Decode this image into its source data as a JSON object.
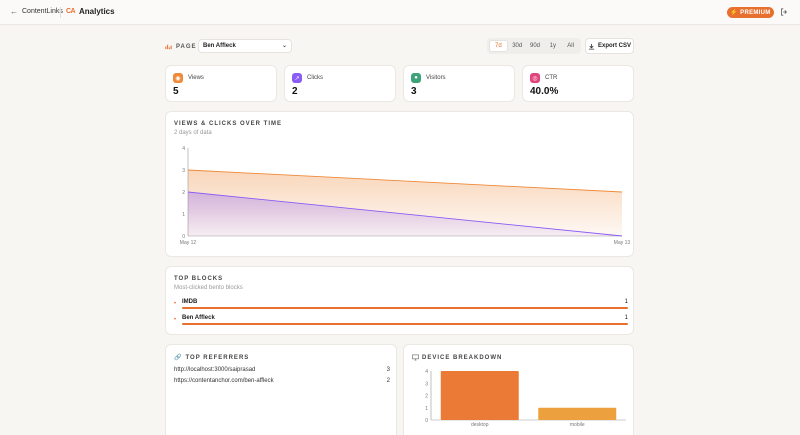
{
  "header": {
    "back_label": "ContentLinks",
    "logo_text": "CA",
    "title": "Analytics",
    "premium_label": "PREMIUM"
  },
  "toolbar": {
    "page_label": "PAGE",
    "selected_page": "Ben Affleck",
    "ranges": [
      "7d",
      "30d",
      "90d",
      "1y",
      "All"
    ],
    "active_range": "7d",
    "export_label": "Export CSV"
  },
  "stats": [
    {
      "label": "Views",
      "value": "5",
      "color": "#ee8a3a"
    },
    {
      "label": "Clicks",
      "value": "2",
      "color": "#8b5cf6"
    },
    {
      "label": "Visitors",
      "value": "3",
      "color": "#3fa37a"
    },
    {
      "label": "CTR",
      "value": "40.0%",
      "color": "#e0457b"
    }
  ],
  "timeline": {
    "title": "VIEWS & CLICKS OVER TIME",
    "subtitle": "2 days of data"
  },
  "top_blocks": {
    "title": "TOP BLOCKS",
    "subtitle": "Most-clicked bento blocks",
    "items": [
      {
        "name": "IMDB",
        "count": "1"
      },
      {
        "name": "Ben Affleck",
        "count": "1"
      }
    ]
  },
  "referrers": {
    "title": "TOP REFERRERS",
    "items": [
      {
        "url": "http://localhost:3000/saiprasad",
        "count": "3"
      },
      {
        "url": "https://contentanchor.com/ben-affleck",
        "count": "2"
      }
    ]
  },
  "devices": {
    "title": "DEVICE BREAKDOWN"
  },
  "chart_data": [
    {
      "type": "area",
      "x": [
        "May 12",
        "May 13"
      ],
      "series": [
        {
          "values": [
            3,
            2
          ],
          "color": "#ee8a3a"
        },
        {
          "values": [
            2,
            0
          ],
          "color": "#8b5cf6"
        }
      ],
      "xlabel": "",
      "ylabel": "",
      "ylim": [
        0,
        4
      ],
      "yticks": [
        "0",
        "1",
        "2",
        "3",
        "4"
      ],
      "grid": false
    },
    {
      "type": "bar",
      "categories": [
        "desktop",
        "mobile"
      ],
      "values": [
        4,
        1
      ],
      "colors": [
        "#ea7a35",
        "#eda03e"
      ],
      "ylim": [
        0,
        4
      ],
      "yticks": [
        "0",
        "1",
        "2",
        "3",
        "4"
      ],
      "grid": false
    }
  ]
}
